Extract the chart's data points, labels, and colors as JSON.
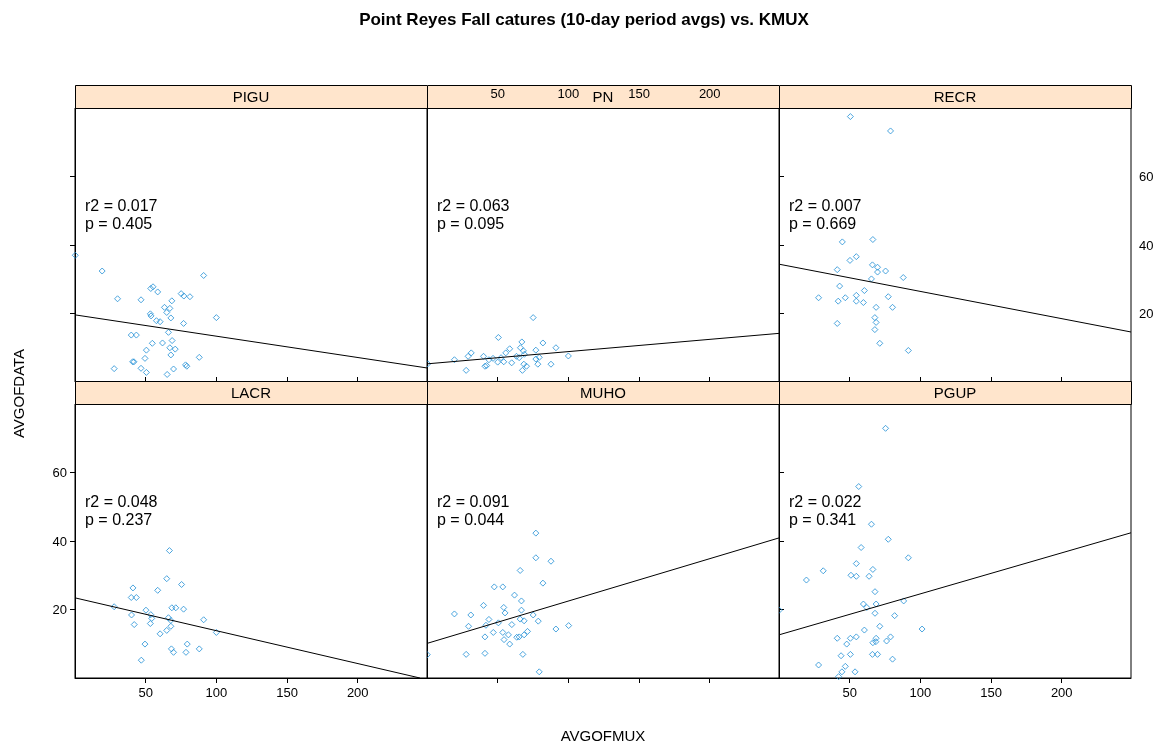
{
  "chart_data": [
    {
      "type": "scatter",
      "subtitle": "PIGU",
      "annotations": [
        "r2 = 0.017",
        "p = 0.405"
      ],
      "xlim": [
        0,
        249
      ],
      "ylim": [
        0,
        80
      ],
      "xticks": [
        50,
        100,
        150,
        200
      ],
      "yticks": [
        20,
        40,
        60
      ],
      "tick_labels": false,
      "series": [
        {
          "marker": "diamond",
          "color": "#1f8fd6",
          "x": [
            0.2,
            19.2,
            91.0,
            30.1,
            46.7,
            53.6,
            55.2,
            58.5,
            68.5,
            75.1,
            77.0,
            81.3,
            63.3,
            67.1,
            53.3,
            53.8,
            64.9,
            67.8,
            57.6,
            60.2,
            76.8,
            100.0,
            66.1,
            39.8,
            43.4,
            54.7,
            61.9,
            68.7,
            50.5,
            67.1,
            70.9,
            67.8,
            49.5,
            40.8,
            41.7,
            87.9,
            27.7,
            46.7,
            50.5,
            65.2,
            69.7,
            78.2,
            79.1
          ],
          "values": [
            37.0,
            32.4,
            31.1,
            24.3,
            24.0,
            27.3,
            27.8,
            26.3,
            23.7,
            25.8,
            25.1,
            24.9,
            21.8,
            21.5,
            19.9,
            19.3,
            20.3,
            18.7,
            17.9,
            17.6,
            17.1,
            18.8,
            14.5,
            13.7,
            13.7,
            11.3,
            11.4,
            12.1,
            9.3,
            10.0,
            9.6,
            7.9,
            6.9,
            5.9,
            5.9,
            7.2,
            3.9,
            4.0,
            2.8,
            2.2,
            3.8,
            5.0,
            4.6
          ]
        },
        {
          "type": "line",
          "color": "#000000",
          "x": [
            0,
            249
          ],
          "values": [
            19.6,
            4.1
          ]
        }
      ]
    },
    {
      "type": "scatter",
      "title": "Point Reyes Fall catures (10-day period avgs) vs. KMUX",
      "subtitle": "PN",
      "annotations": [
        "r2 = 0.063",
        "p = 0.095"
      ],
      "xlim": [
        0,
        249
      ],
      "ylim": [
        0,
        80
      ],
      "xticks": [
        50,
        100,
        150,
        200
      ],
      "yticks": [
        20,
        40,
        60
      ],
      "tick_labels": "x",
      "series": [
        {
          "marker": "diamond",
          "color": "#1f8fd6",
          "x": [
            0.5,
            19.4,
            27.7,
            29.1,
            31.3,
            40.0,
            41.0,
            42.2,
            43.8,
            46.7,
            50.0,
            50.5,
            52.4,
            54.3,
            55.7,
            58.5,
            59.9,
            63.3,
            65.2,
            66.1,
            67.1,
            68.2,
            68.9,
            68.5,
            70.4,
            67.5,
            75.1,
            77.0,
            77.0,
            79.4,
            78.4,
            82.0,
            87.7,
            91.2,
            100.0
          ],
          "values": [
            5.3,
            6.5,
            3.4,
            7.5,
            8.5,
            7.5,
            4.6,
            4.8,
            6.5,
            6.9,
            5.8,
            13.0,
            7.1,
            5.9,
            8.5,
            9.7,
            5.6,
            7.5,
            7.1,
            10.0,
            11.7,
            9.1,
            8.1,
            5.2,
            4.6,
            3.4,
            18.8,
            9.3,
            6.7,
            7.2,
            5.2,
            11.4,
            5.2,
            10.0,
            7.6
          ]
        },
        {
          "type": "line",
          "color": "#000000",
          "x": [
            0,
            249
          ],
          "values": [
            5.3,
            14.2
          ]
        }
      ]
    },
    {
      "type": "scatter",
      "subtitle": "RECR",
      "annotations": [
        "r2 = 0.007",
        "p = 0.669"
      ],
      "xlim": [
        0,
        249
      ],
      "ylim": [
        0,
        80
      ],
      "xticks": [
        50,
        100,
        150,
        200
      ],
      "yticks": [
        20,
        40,
        60
      ],
      "tick_labels": "y",
      "series": [
        {
          "marker": "diamond",
          "color": "#1f8fd6",
          "x": [
            50.5,
            78.9,
            44.8,
            66.4,
            50.2,
            54.7,
            41.2,
            66.1,
            69.7,
            69.7,
            75.4,
            87.9,
            65.4,
            42.9,
            60.4,
            54.7,
            28.0,
            41.9,
            46.9,
            54.7,
            59.7,
            77.3,
            68.7,
            80.3,
            67.8,
            68.7,
            41.2,
            67.8,
            71.3,
            91.5
          ],
          "values": [
            77.5,
            73.3,
            40.9,
            41.6,
            35.5,
            36.6,
            32.8,
            34.2,
            33.5,
            32.1,
            32.4,
            30.5,
            30.1,
            28.0,
            26.7,
            25.3,
            24.6,
            23.6,
            24.6,
            23.6,
            23.2,
            24.9,
            21.8,
            21.8,
            18.8,
            17.4,
            17.1,
            15.3,
            11.3,
            9.2
          ]
        },
        {
          "type": "line",
          "color": "#000000",
          "x": [
            0,
            249
          ],
          "values": [
            34.4,
            14.6
          ]
        }
      ]
    },
    {
      "type": "scatter",
      "subtitle": "LACR",
      "ylabel": "AVGOFDATA",
      "annotations": [
        "r2 = 0.048",
        "p = 0.237"
      ],
      "xlim": [
        0,
        249
      ],
      "ylim": [
        0,
        80
      ],
      "xticks": [
        50,
        100,
        150,
        200
      ],
      "yticks": [
        20,
        40,
        60
      ],
      "series": [
        {
          "marker": "diamond",
          "color": "#1f8fd6",
          "x": [
            66.8,
            64.9,
            75.4,
            41.0,
            58.5,
            39.8,
            43.4,
            27.7,
            50.2,
            68.5,
            71.3,
            76.8,
            40.0,
            53.6,
            54.3,
            66.1,
            67.8,
            91.0,
            41.9,
            53.3,
            67.8,
            64.9,
            60.2,
            100.0,
            49.5,
            79.4,
            68.2,
            69.7,
            78.5,
            87.9,
            46.9
          ],
          "values": [
            37.2,
            29.0,
            27.3,
            26.3,
            25.6,
            23.5,
            23.5,
            20.8,
            19.8,
            20.5,
            20.5,
            20.1,
            18.4,
            18.5,
            17.4,
            17.6,
            16.8,
            17.0,
            15.6,
            15.9,
            15.1,
            13.9,
            12.9,
            13.3,
            9.9,
            9.9,
            8.5,
            7.5,
            7.5,
            8.5,
            5.2
          ]
        },
        {
          "type": "line",
          "color": "#000000",
          "x": [
            0,
            244
          ],
          "values": [
            23.4,
            0
          ]
        }
      ]
    },
    {
      "type": "scatter",
      "subtitle": "MUHO",
      "xlabel": "AVGOFMUX",
      "annotations": [
        "r2 = 0.091",
        "p = 0.044"
      ],
      "xlim": [
        0,
        249
      ],
      "ylim": [
        0,
        80
      ],
      "xticks": [
        50,
        100,
        150,
        200
      ],
      "yticks": [
        20,
        40,
        60
      ],
      "tick_labels": false,
      "series": [
        {
          "marker": "diamond",
          "color": "#1f8fd6",
          "x": [
            77.0,
            77.0,
            87.7,
            65.9,
            82.0,
            47.6,
            53.6,
            61.9,
            66.8,
            40.0,
            54.3,
            66.8,
            19.4,
            31.0,
            55.2,
            75.1,
            43.8,
            50.5,
            65.9,
            68.7,
            78.7,
            29.4,
            41.7,
            60.0,
            100.2,
            91.2,
            46.9,
            53.6,
            57.6,
            71.1,
            68.7,
            41.0,
            63.5,
            65.2,
            54.5,
            58.5,
            27.7,
            41.0,
            67.8,
            79.4,
            0.2
          ],
          "values": [
            42.3,
            35.1,
            34.1,
            31.4,
            27.7,
            26.6,
            26.6,
            24.2,
            22.5,
            21.2,
            20.6,
            19.8,
            18.7,
            18.4,
            19.0,
            18.4,
            17.1,
            16.1,
            17.2,
            16.7,
            16.6,
            15.1,
            15.4,
            15.6,
            15.3,
            14.3,
            13.3,
            13.3,
            12.6,
            13.6,
            12.6,
            12.0,
            11.9,
            12.0,
            11.2,
            9.9,
            6.9,
            7.2,
            6.9,
            1.8,
            6.8
          ]
        },
        {
          "type": "line",
          "color": "#000000",
          "x": [
            0,
            249
          ],
          "values": [
            10.1,
            40.9
          ]
        }
      ]
    },
    {
      "type": "scatter",
      "subtitle": "PGUP",
      "annotations": [
        "r2 = 0.022",
        "p = 0.341"
      ],
      "xlim": [
        0,
        249
      ],
      "ylim": [
        0,
        80
      ],
      "xticks": [
        50,
        100,
        150,
        200
      ],
      "yticks": [
        20,
        40,
        60
      ],
      "tick_labels": "x",
      "series": [
        {
          "marker": "diamond",
          "color": "#1f8fd6",
          "x": [
            75.4,
            56.4,
            65.4,
            77.3,
            58.1,
            91.5,
            54.7,
            31.3,
            66.4,
            19.4,
            50.9,
            54.7,
            63.7,
            67.9,
            59.7,
            62.1,
            68.7,
            88.2,
            67.9,
            81.8,
            0.2,
            71.3,
            60.4,
            101.2,
            41.2,
            50.5,
            54.7,
            68.7,
            78.9,
            47.9,
            66.4,
            68.5,
            76.1,
            43.9,
            50.5,
            66.1,
            69.7,
            80.3,
            28.0,
            46.9,
            44.5,
            53.8,
            42.2
          ],
          "values": [
            72.9,
            55.9,
            44.9,
            40.5,
            38.1,
            35.1,
            33.4,
            31.3,
            31.7,
            28.6,
            30.0,
            29.7,
            29.7,
            25.2,
            21.6,
            20.6,
            21.6,
            22.5,
            18.9,
            18.2,
            19.8,
            15.1,
            14.0,
            14.3,
            11.6,
            11.6,
            12.0,
            11.6,
            12.0,
            9.9,
            10.3,
            10.6,
            10.8,
            6.5,
            6.9,
            6.9,
            6.9,
            5.5,
            3.8,
            3.4,
            1.8,
            1.8,
            0.4
          ]
        },
        {
          "type": "line",
          "color": "#000000",
          "x": [
            0,
            249
          ],
          "values": [
            12.6,
            42.4
          ]
        }
      ]
    }
  ]
}
